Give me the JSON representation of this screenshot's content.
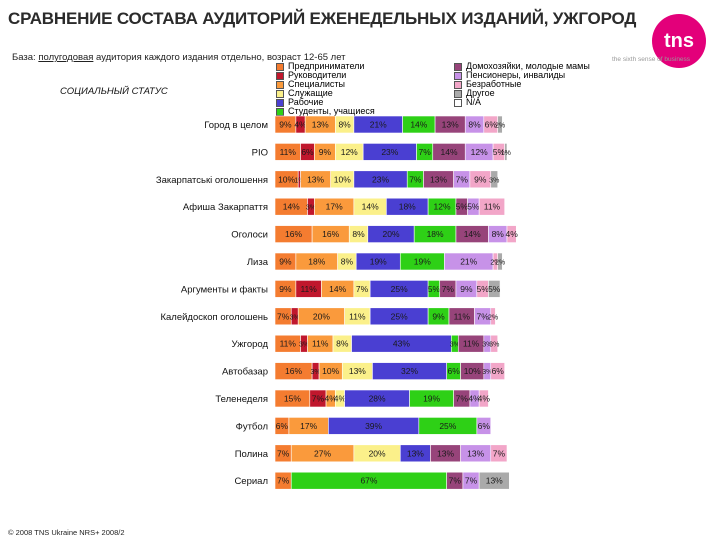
{
  "title": "СРАВНЕНИЕ СОСТАВА АУДИТОРИЙ ЕЖЕНЕДЕЛЬНЫХ ИЗДАНИЙ, УЖГОРОД",
  "base": {
    "label": "База:",
    "underlined": "полугодовая",
    "rest": "аудитория каждого издания отдельно, возраст 12-65 лет"
  },
  "section_title": "СОЦИАЛЬНЫЙ СТАТУС",
  "logo": {
    "text": "tns",
    "tagline": "the sixth sense of business",
    "color": "#e3007a"
  },
  "footer": "© 2008 TNS Ukraine NRS+ 2008/2",
  "chart_data": {
    "type": "bar",
    "orientation": "horizontal",
    "stacked": true,
    "xlim": [
      0,
      100
    ],
    "categories": [
      "Город в целом",
      "РІО",
      "Закарпатські оголошення",
      "Афиша Закарпаття",
      "Оголоси",
      "Лиза",
      "Аргументы и факты",
      "Калейдоскоп оголошень",
      "Ужгород",
      "Автобазар",
      "Теленеделя",
      "Футбол",
      "Полина",
      "Сериал"
    ],
    "series": [
      {
        "name": "Предприниматели",
        "color": "#f47c30",
        "values": [
          9,
          11,
          10,
          14,
          16,
          9,
          9,
          7,
          11,
          16,
          15,
          6,
          7,
          7
        ]
      },
      {
        "name": "Руководители",
        "color": "#c0172d",
        "values": [
          4,
          6,
          1,
          3,
          0,
          0,
          11,
          3,
          3,
          3,
          7,
          0,
          0,
          0
        ]
      },
      {
        "name": "Специалисты",
        "color": "#fa9a3c",
        "values": [
          13,
          9,
          13,
          17,
          16,
          18,
          14,
          20,
          11,
          10,
          4,
          17,
          27,
          0
        ]
      },
      {
        "name": "Служащие",
        "color": "#fbf08a",
        "values": [
          8,
          12,
          10,
          14,
          8,
          8,
          7,
          11,
          8,
          13,
          4,
          0,
          20,
          0
        ]
      },
      {
        "name": "Рабочие",
        "color": "#4a3fd2",
        "values": [
          21,
          23,
          23,
          18,
          20,
          19,
          25,
          25,
          43,
          32,
          28,
          39,
          13,
          0
        ]
      },
      {
        "name": "Студенты, учащиеся",
        "color": "#2ed016",
        "values": [
          14,
          7,
          7,
          12,
          18,
          19,
          5,
          9,
          3,
          6,
          19,
          25,
          0,
          67
        ]
      },
      {
        "name": "Домохозяйки, молодые мамы",
        "color": "#97447a",
        "values": [
          13,
          14,
          13,
          5,
          14,
          0,
          7,
          11,
          11,
          10,
          7,
          0,
          13,
          7
        ]
      },
      {
        "name": "Пенсионеры, инвалиды",
        "color": "#c792e8",
        "values": [
          8,
          12,
          7,
          5,
          8,
          21,
          9,
          7,
          3,
          3,
          4,
          6,
          13,
          7
        ]
      },
      {
        "name": "Безработные",
        "color": "#f2a6c8",
        "values": [
          6,
          5,
          9,
          11,
          4,
          2,
          5,
          2,
          3,
          6,
          4,
          0,
          7,
          0
        ]
      },
      {
        "name": "Другое",
        "color": "#aaaaaa",
        "values": [
          2,
          1,
          3,
          0,
          0,
          2,
          5,
          0,
          0,
          0,
          0,
          0,
          0,
          13
        ]
      },
      {
        "name": "N/A",
        "color": "#ffffff",
        "values": [
          0,
          0,
          0,
          0,
          0,
          0,
          0,
          0,
          0,
          0,
          0,
          0,
          0,
          0
        ]
      }
    ],
    "label_color": "#1a1a1a"
  }
}
